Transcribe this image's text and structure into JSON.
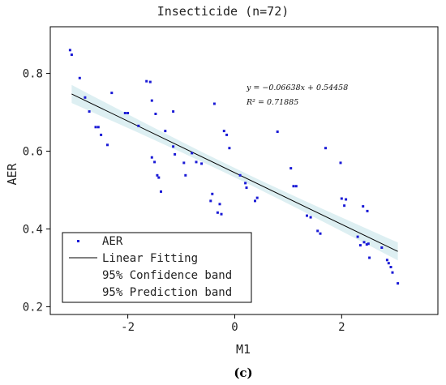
{
  "chart_data": {
    "type": "scatter",
    "title": "Insecticide (n=72)",
    "xlabel": "M1",
    "ylabel": "AER",
    "panel_label": "(c)",
    "xlim": [
      -3.45,
      3.8
    ],
    "ylim": [
      0.18,
      0.92
    ],
    "xticks": [
      -2,
      0,
      2
    ],
    "yticks": [
      0.2,
      0.4,
      0.6,
      0.8
    ],
    "xtick_labels": [
      "-2",
      "0",
      "2"
    ],
    "ytick_labels": [
      "0.2",
      "0.4",
      "0.6",
      "0.8"
    ],
    "grid": false,
    "legend_position": "bottom-left",
    "legend": [
      "AER",
      "Linear Fitting",
      "95% Confidence band",
      "95% Prediction band"
    ],
    "equation_text": "y = −0.06638x + 0.54458",
    "r2_text": "R² = 0.71885",
    "fit": {
      "slope": -0.06638,
      "intercept": 0.54458,
      "x_range": [
        -3.05,
        3.05
      ]
    },
    "colors": {
      "points": "#1a1ad6",
      "fit_line": "#000000",
      "confidence_band": "#cfe8ec"
    },
    "series": [
      {
        "name": "AER",
        "points": [
          [
            -3.08,
            0.86
          ],
          [
            -3.05,
            0.848
          ],
          [
            -2.9,
            0.788
          ],
          [
            -2.8,
            0.738
          ],
          [
            -2.72,
            0.702
          ],
          [
            -2.6,
            0.662
          ],
          [
            -2.55,
            0.662
          ],
          [
            -2.5,
            0.642
          ],
          [
            -2.38,
            0.616
          ],
          [
            -2.3,
            0.75
          ],
          [
            -2.05,
            0.698
          ],
          [
            -2.0,
            0.698
          ],
          [
            -1.8,
            0.665
          ],
          [
            -1.65,
            0.78
          ],
          [
            -1.58,
            0.778
          ],
          [
            -1.55,
            0.73
          ],
          [
            -1.55,
            0.584
          ],
          [
            -1.5,
            0.572
          ],
          [
            -1.48,
            0.696
          ],
          [
            -1.45,
            0.538
          ],
          [
            -1.42,
            0.532
          ],
          [
            -1.38,
            0.496
          ],
          [
            -1.3,
            0.652
          ],
          [
            -1.15,
            0.702
          ],
          [
            -1.15,
            0.612
          ],
          [
            -1.12,
            0.592
          ],
          [
            -0.95,
            0.57
          ],
          [
            -0.92,
            0.538
          ],
          [
            -0.8,
            0.595
          ],
          [
            -0.72,
            0.572
          ],
          [
            -0.62,
            0.568
          ],
          [
            -0.45,
            0.472
          ],
          [
            -0.42,
            0.49
          ],
          [
            -0.38,
            0.722
          ],
          [
            -0.32,
            0.442
          ],
          [
            -0.28,
            0.464
          ],
          [
            -0.25,
            0.438
          ],
          [
            -0.2,
            0.652
          ],
          [
            -0.15,
            0.642
          ],
          [
            -0.1,
            0.608
          ],
          [
            0.1,
            0.538
          ],
          [
            0.2,
            0.518
          ],
          [
            0.22,
            0.506
          ],
          [
            0.38,
            0.472
          ],
          [
            0.42,
            0.48
          ],
          [
            0.8,
            0.65
          ],
          [
            1.05,
            0.556
          ],
          [
            1.1,
            0.51
          ],
          [
            1.15,
            0.51
          ],
          [
            1.35,
            0.434
          ],
          [
            1.42,
            0.43
          ],
          [
            1.55,
            0.395
          ],
          [
            1.6,
            0.388
          ],
          [
            1.7,
            0.608
          ],
          [
            1.98,
            0.57
          ],
          [
            2.0,
            0.478
          ],
          [
            2.05,
            0.46
          ],
          [
            2.08,
            0.476
          ],
          [
            2.3,
            0.38
          ],
          [
            2.35,
            0.358
          ],
          [
            2.4,
            0.458
          ],
          [
            2.42,
            0.366
          ],
          [
            2.48,
            0.446
          ],
          [
            2.5,
            0.362
          ],
          [
            2.52,
            0.326
          ],
          [
            2.75,
            0.352
          ],
          [
            2.85,
            0.32
          ],
          [
            2.88,
            0.312
          ],
          [
            2.92,
            0.302
          ],
          [
            2.95,
            0.288
          ],
          [
            3.05,
            0.26
          ],
          [
            2.47,
            0.36
          ]
        ]
      }
    ]
  }
}
